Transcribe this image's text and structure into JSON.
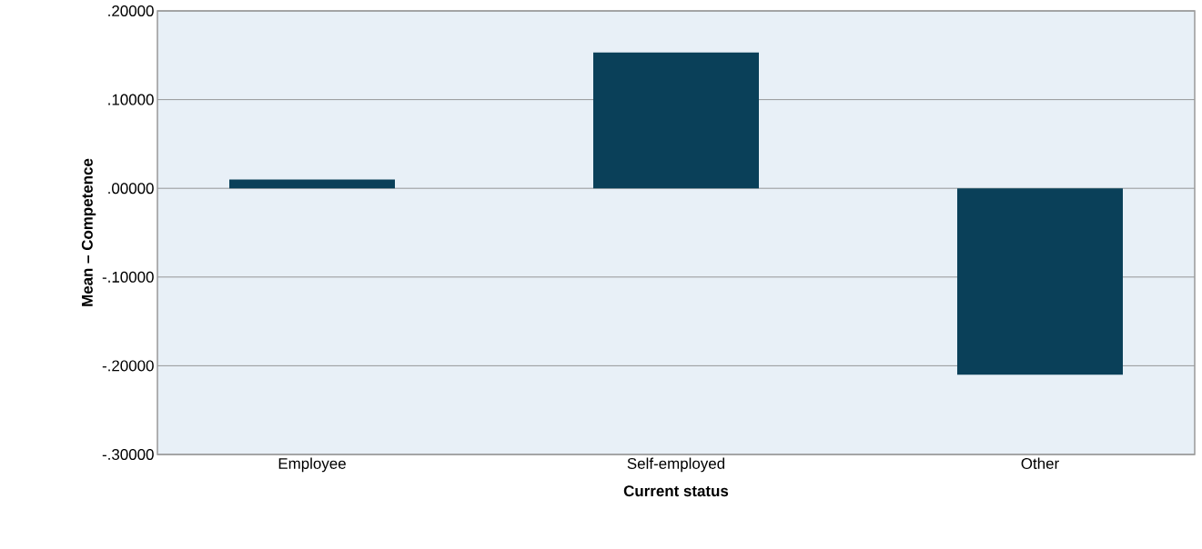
{
  "chart_data": {
    "type": "bar",
    "xlabel": "Current status",
    "ylabel": "Mean – Competence",
    "categories": [
      "Employee",
      "Self-employed",
      "Other"
    ],
    "values": [
      0.01,
      0.153,
      -0.21
    ],
    "color": "#0a4059",
    "ylim": [
      -0.3,
      0.2
    ],
    "yticks": [
      {
        "value": -0.3,
        "label": "-.30000"
      },
      {
        "value": -0.2,
        "label": "-.20000"
      },
      {
        "value": -0.1,
        "label": "-.10000"
      },
      {
        "value": 0,
        "label": ".00000"
      },
      {
        "value": 0.1,
        "label": ".10000"
      },
      {
        "value": 0.2,
        "label": ".20000"
      }
    ],
    "grid": "y"
  }
}
